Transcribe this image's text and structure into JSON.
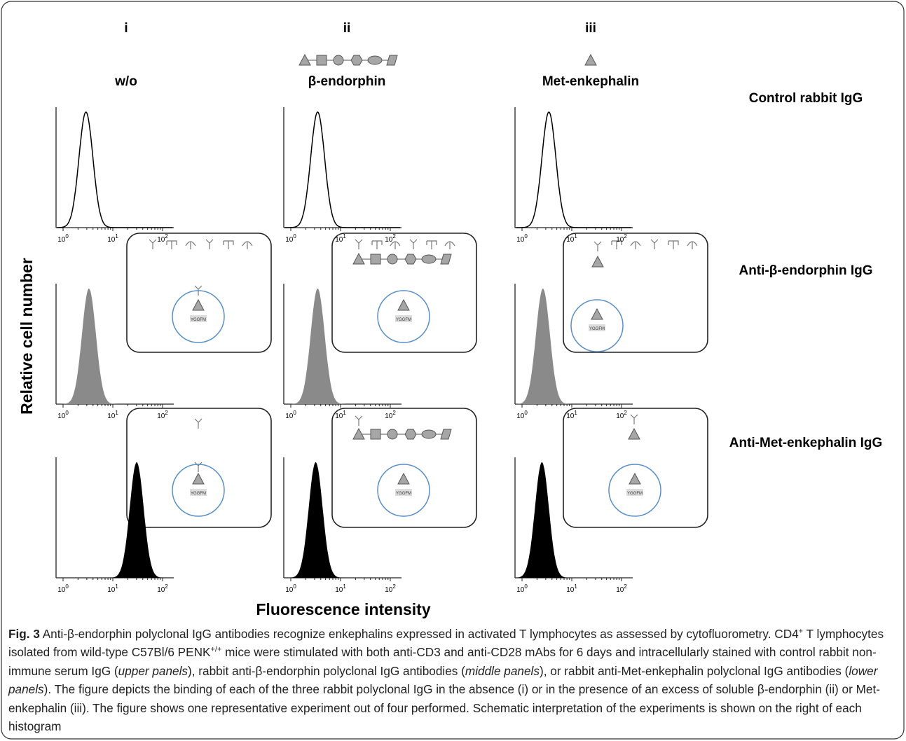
{
  "figure": {
    "columns": [
      {
        "numeral": "i",
        "label": "w/o"
      },
      {
        "numeral": "ii",
        "label": "β-endorphin"
      },
      {
        "numeral": "iii",
        "label": "Met-enkephalin"
      }
    ],
    "rows": [
      {
        "label": "Control rabbit IgG",
        "style": "outline",
        "peaks": [
          0.46,
          0.54,
          0.54
        ]
      },
      {
        "label": "Anti-β-endorphin IgG",
        "style": "gray",
        "peaks": [
          0.52,
          0.54,
          0.42
        ]
      },
      {
        "label": "Anti-Met-enkephalin IgG",
        "style": "black",
        "peaks": [
          1.48,
          0.5,
          0.4
        ]
      }
    ],
    "y_label": "Relative cell number",
    "x_label": "Fluorescence intensity",
    "x_ticks": {
      "base": "10",
      "exponents": [
        "0",
        "1",
        "2"
      ]
    },
    "inset_text": "YGGFM"
  },
  "caption": [
    {
      "t": "Fig. 3",
      "b": true
    },
    {
      "t": " Anti-β-endorphin polyclonal IgG antibodies recognize enkephalins expressed in activated T lymphocytes as assessed by cytofluorometry. CD4"
    },
    {
      "t": "+",
      "sup": true
    },
    {
      "t": " T lymphocytes isolated from wild-type C57Bl/6 PENK"
    },
    {
      "t": "+/+",
      "sup": true
    },
    {
      "t": " mice were stimulated with both anti-CD3 and anti-CD28 mAbs for 6 days and intracellularly stained with control rabbit non-immune serum IgG ("
    },
    {
      "t": "upper panels",
      "i": true
    },
    {
      "t": "), rabbit anti-β-endorphin polyclonal IgG antibodies ("
    },
    {
      "t": "middle panels",
      "i": true
    },
    {
      "t": "), or rabbit anti-Met-enkephalin polyclonal IgG antibodies ("
    },
    {
      "t": "lower panels",
      "i": true
    },
    {
      "t": "). The figure depicts the binding of each of the three rabbit polyclonal IgG in the absence (i) or in the presence of an excess of soluble β-endorphin (ii) or Met-enkephalin (iii). The figure shows one representative experiment out of four performed. Schematic interpretation of the experiments is shown on the right of each histogram"
    }
  ]
}
